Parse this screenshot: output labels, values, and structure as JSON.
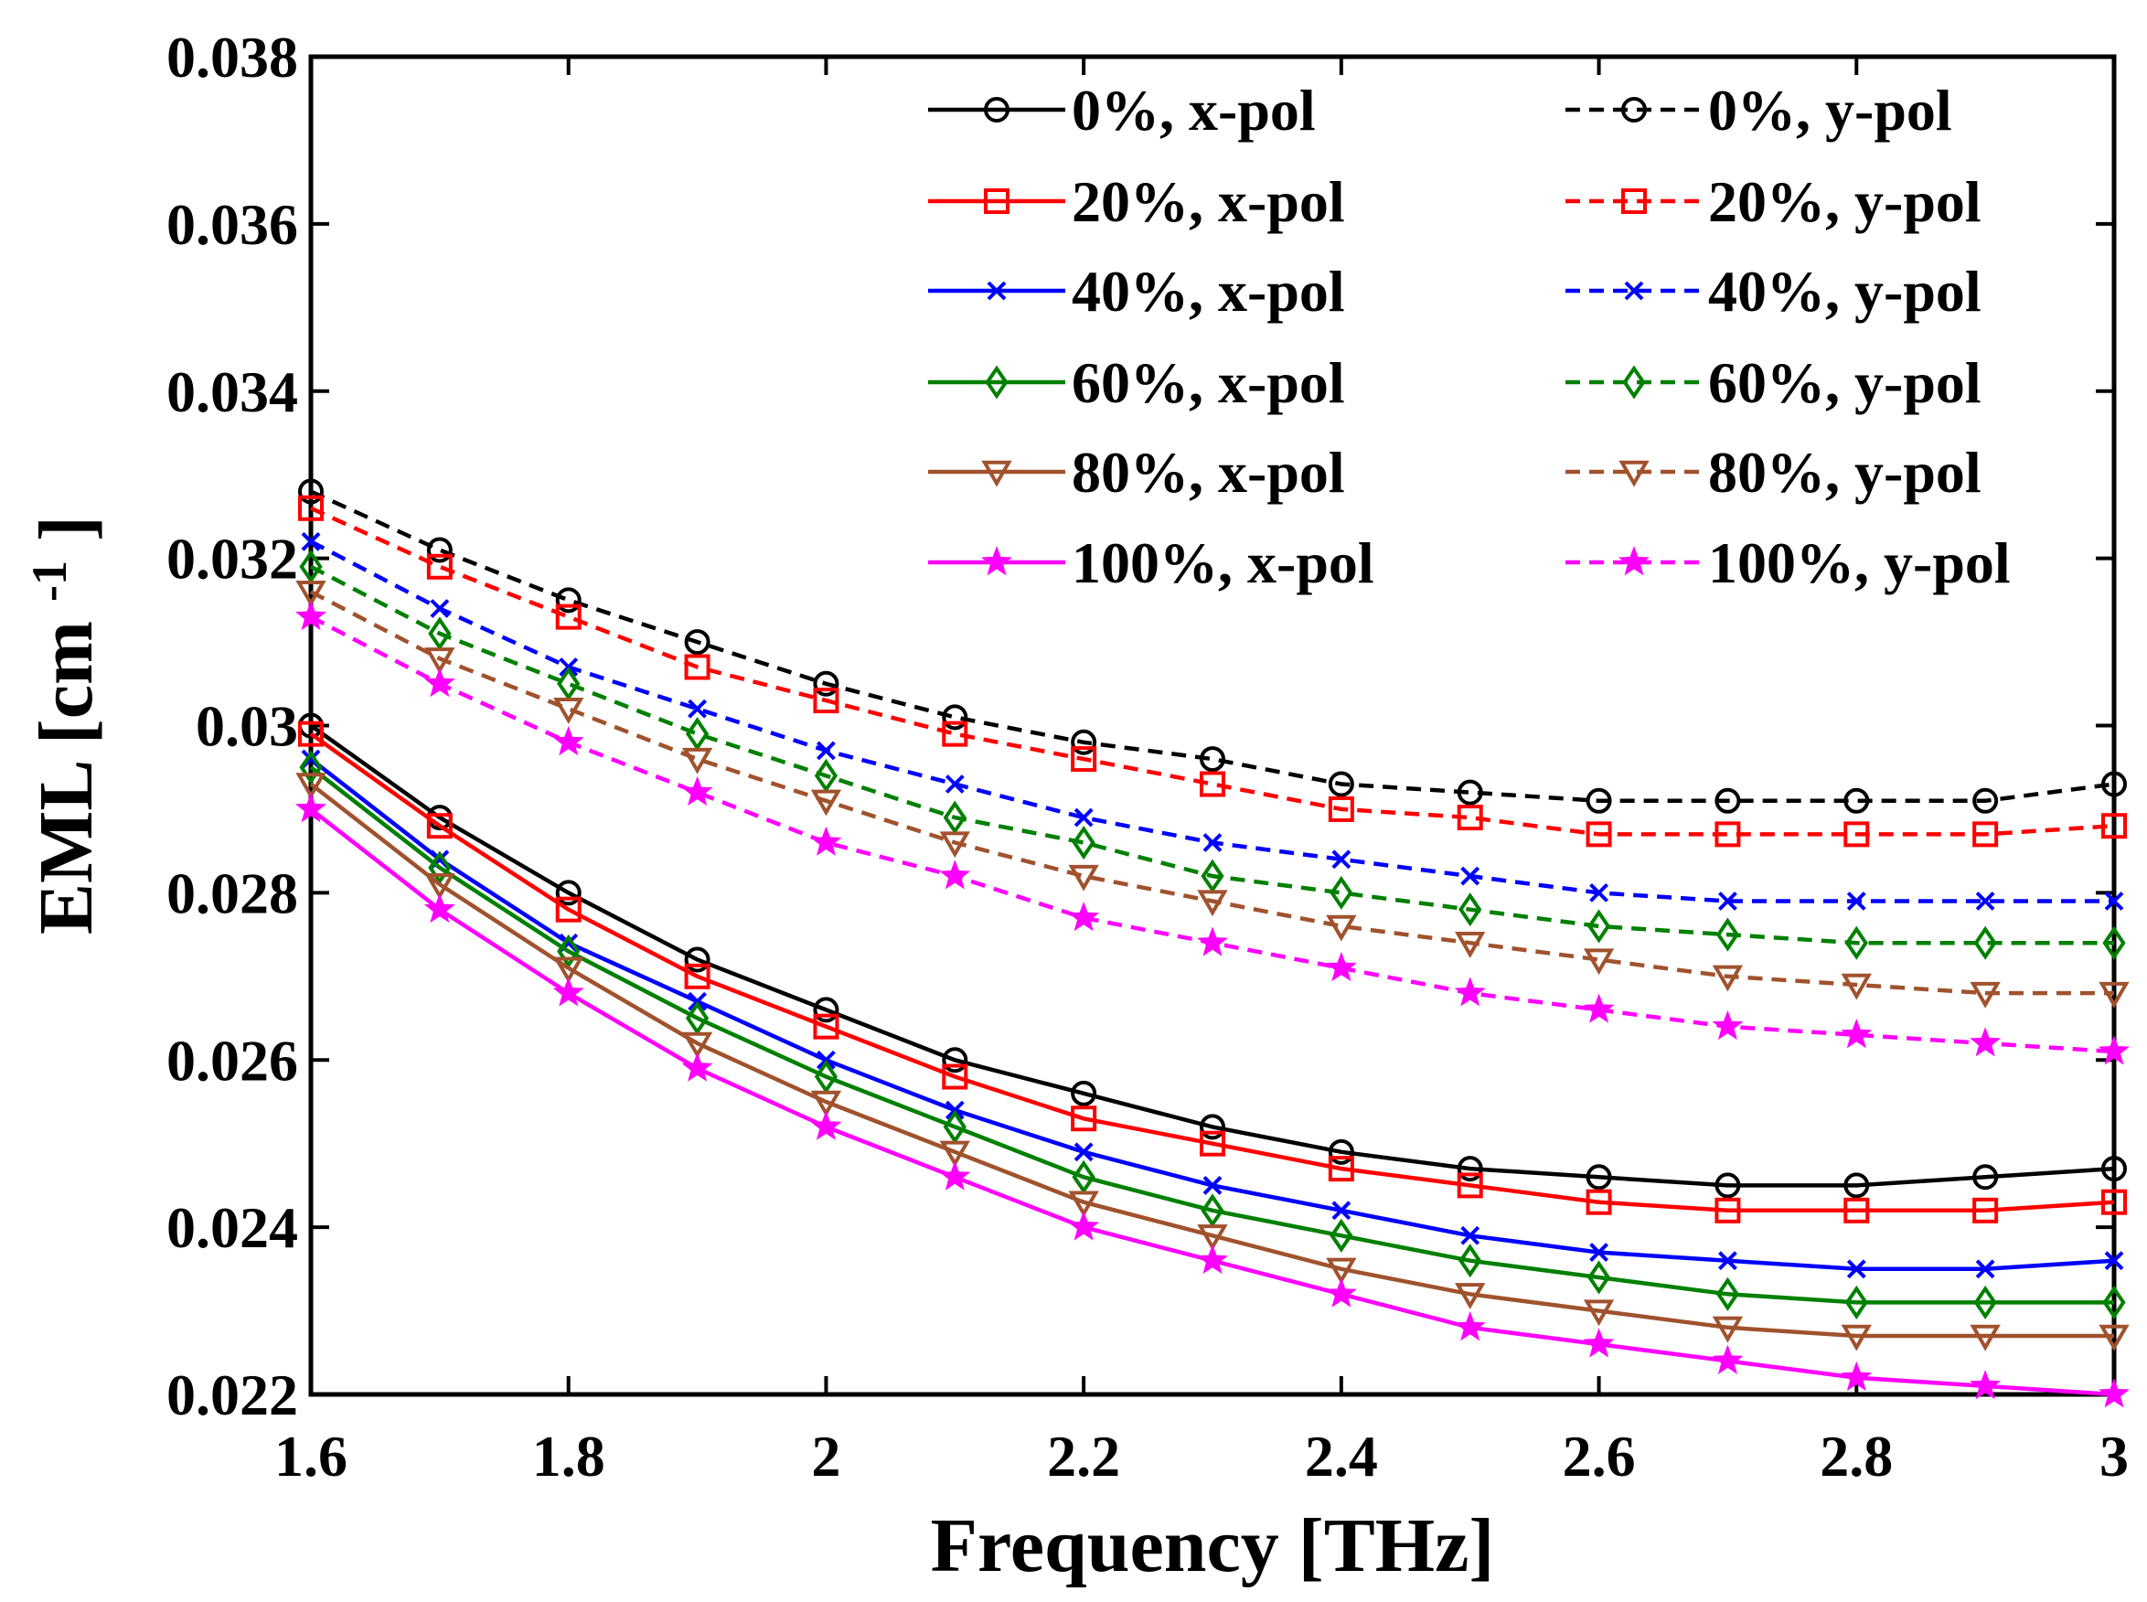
{
  "chart_data": {
    "type": "line",
    "xlabel": "Frequency [THz]",
    "ylabel": "EML [cm",
    "ylabel_sup": "-1",
    "ylabel_close": "]",
    "xlim": [
      1.6,
      3.0
    ],
    "ylim": [
      0.022,
      0.038
    ],
    "xticks": [
      1.6,
      1.8,
      2.0,
      2.2,
      2.4,
      2.6,
      2.8,
      3.0
    ],
    "xtick_labels": [
      "1.6",
      "1.8",
      "2",
      "2.2",
      "2.4",
      "2.6",
      "2.8",
      "3"
    ],
    "yticks": [
      0.022,
      0.024,
      0.026,
      0.028,
      0.03,
      0.032,
      0.034,
      0.036,
      0.038
    ],
    "ytick_labels": [
      "0.022",
      "0.024",
      "0.026",
      "0.028",
      "0.03",
      "0.032",
      "0.034",
      "0.036",
      "0.038"
    ],
    "grid": false,
    "legend_position": "top-right",
    "x": [
      1.6,
      1.7,
      1.8,
      1.9,
      2.0,
      2.1,
      2.2,
      2.3,
      2.4,
      2.5,
      2.6,
      2.7,
      2.8,
      2.9,
      3.0
    ],
    "series": [
      {
        "name": "0%, x-pol",
        "color": "#000000",
        "dash": "solid",
        "marker": "circle",
        "values": [
          0.03,
          0.0289,
          0.028,
          0.0272,
          0.0266,
          0.026,
          0.0256,
          0.0252,
          0.0249,
          0.0247,
          0.0246,
          0.0245,
          0.0245,
          0.0246,
          0.0247
        ]
      },
      {
        "name": "20%, x-pol",
        "color": "#ff0000",
        "dash": "solid",
        "marker": "square",
        "values": [
          0.0299,
          0.0288,
          0.0278,
          0.027,
          0.0264,
          0.0258,
          0.0253,
          0.025,
          0.0247,
          0.0245,
          0.0243,
          0.0242,
          0.0242,
          0.0242,
          0.0243
        ]
      },
      {
        "name": "40%, x-pol",
        "color": "#0000ff",
        "dash": "solid",
        "marker": "x",
        "values": [
          0.0296,
          0.0284,
          0.0274,
          0.0267,
          0.026,
          0.0254,
          0.0249,
          0.0245,
          0.0242,
          0.0239,
          0.0237,
          0.0236,
          0.0235,
          0.0235,
          0.0236
        ]
      },
      {
        "name": "60%, x-pol",
        "color": "#008000",
        "dash": "solid",
        "marker": "diamond",
        "values": [
          0.0295,
          0.0283,
          0.0273,
          0.0265,
          0.0258,
          0.0252,
          0.0246,
          0.0242,
          0.0239,
          0.0236,
          0.0234,
          0.0232,
          0.0231,
          0.0231,
          0.0231
        ]
      },
      {
        "name": "80%, x-pol",
        "color": "#a0522d",
        "dash": "solid",
        "marker": "triangle-down",
        "values": [
          0.0293,
          0.0281,
          0.0271,
          0.0262,
          0.0255,
          0.0249,
          0.0243,
          0.0239,
          0.0235,
          0.0232,
          0.023,
          0.0228,
          0.0227,
          0.0227,
          0.0227
        ]
      },
      {
        "name": "100%, x-pol",
        "color": "#ff00ff",
        "dash": "solid",
        "marker": "star",
        "values": [
          0.029,
          0.0278,
          0.0268,
          0.0259,
          0.0252,
          0.0246,
          0.024,
          0.0236,
          0.0232,
          0.0228,
          0.0226,
          0.0224,
          0.0222,
          0.0221,
          0.022
        ]
      },
      {
        "name": "0%, y-pol",
        "color": "#000000",
        "dash": "dashed",
        "marker": "circle",
        "values": [
          0.0328,
          0.0321,
          0.0315,
          0.031,
          0.0305,
          0.0301,
          0.0298,
          0.0296,
          0.0293,
          0.0292,
          0.0291,
          0.0291,
          0.0291,
          0.0291,
          0.0293
        ]
      },
      {
        "name": "20%, y-pol",
        "color": "#ff0000",
        "dash": "dashed",
        "marker": "square",
        "values": [
          0.0326,
          0.0319,
          0.0313,
          0.0307,
          0.0303,
          0.0299,
          0.0296,
          0.0293,
          0.029,
          0.0289,
          0.0287,
          0.0287,
          0.0287,
          0.0287,
          0.0288
        ]
      },
      {
        "name": "40%, y-pol",
        "color": "#0000ff",
        "dash": "dashed",
        "marker": "x",
        "values": [
          0.0322,
          0.0314,
          0.0307,
          0.0302,
          0.0297,
          0.0293,
          0.0289,
          0.0286,
          0.0284,
          0.0282,
          0.028,
          0.0279,
          0.0279,
          0.0279,
          0.0279
        ]
      },
      {
        "name": "60%, y-pol",
        "color": "#008000",
        "dash": "dashed",
        "marker": "diamond",
        "values": [
          0.0319,
          0.0311,
          0.0305,
          0.0299,
          0.0294,
          0.0289,
          0.0286,
          0.0282,
          0.028,
          0.0278,
          0.0276,
          0.0275,
          0.0274,
          0.0274,
          0.0274
        ]
      },
      {
        "name": "80%, y-pol",
        "color": "#a0522d",
        "dash": "dashed",
        "marker": "triangle-down",
        "values": [
          0.0316,
          0.0308,
          0.0302,
          0.0296,
          0.0291,
          0.0286,
          0.0282,
          0.0279,
          0.0276,
          0.0274,
          0.0272,
          0.027,
          0.0269,
          0.0268,
          0.0268
        ]
      },
      {
        "name": "100%, y-pol",
        "color": "#ff00ff",
        "dash": "dashed",
        "marker": "star",
        "values": [
          0.0313,
          0.0305,
          0.0298,
          0.0292,
          0.0286,
          0.0282,
          0.0277,
          0.0274,
          0.0271,
          0.0268,
          0.0266,
          0.0264,
          0.0263,
          0.0262,
          0.0261
        ]
      }
    ]
  }
}
